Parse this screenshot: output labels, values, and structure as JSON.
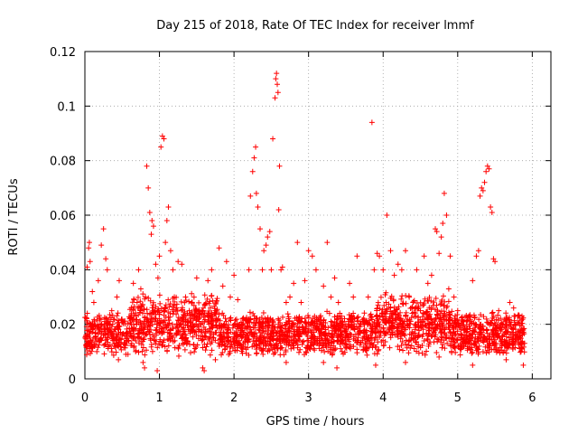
{
  "chart_data": {
    "type": "scatter",
    "title": "Day 215 of 2018, Rate Of TEC Index for receiver lmmf",
    "xlabel": "GPS time / hours",
    "ylabel": "ROTI / TECUs",
    "xlim": [
      0,
      6.25
    ],
    "ylim": [
      0,
      0.12
    ],
    "xticks": [
      0,
      1,
      2,
      3,
      4,
      5,
      6
    ],
    "xtick_labels": [
      "0",
      "1",
      "2",
      "3",
      "4",
      "5",
      "6"
    ],
    "yticks": [
      0,
      0.02,
      0.04,
      0.06,
      0.08,
      0.1,
      0.12
    ],
    "ytick_labels": [
      "0",
      "0.02",
      "0.04",
      "0.06",
      "0.08",
      "0.1",
      "0.12"
    ],
    "grid": true,
    "marker": "+",
    "color": "#ff0000",
    "series": [
      {
        "name": "ROTI",
        "points": [
          [
            0.02,
            0.012
          ],
          [
            0.03,
            0.041
          ],
          [
            0.05,
            0.048
          ],
          [
            0.06,
            0.05
          ],
          [
            0.07,
            0.043
          ],
          [
            0.08,
            0.02
          ],
          [
            0.1,
            0.032
          ],
          [
            0.12,
            0.028
          ],
          [
            0.14,
            0.015
          ],
          [
            0.16,
            0.01
          ],
          [
            0.18,
            0.036
          ],
          [
            0.2,
            0.022
          ],
          [
            0.22,
            0.049
          ],
          [
            0.25,
            0.055
          ],
          [
            0.28,
            0.044
          ],
          [
            0.3,
            0.04
          ],
          [
            0.33,
            0.018
          ],
          [
            0.36,
            0.025
          ],
          [
            0.4,
            0.012
          ],
          [
            0.43,
            0.03
          ],
          [
            0.46,
            0.036
          ],
          [
            0.5,
            0.016
          ],
          [
            0.55,
            0.009
          ],
          [
            0.6,
            0.022
          ],
          [
            0.65,
            0.035
          ],
          [
            0.7,
            0.028
          ],
          [
            0.72,
            0.04
          ],
          [
            0.75,
            0.033
          ],
          [
            0.78,
            0.006
          ],
          [
            0.8,
            0.004
          ],
          [
            0.83,
            0.078
          ],
          [
            0.85,
            0.07
          ],
          [
            0.87,
            0.061
          ],
          [
            0.89,
            0.053
          ],
          [
            0.9,
            0.058
          ],
          [
            0.92,
            0.056
          ],
          [
            0.95,
            0.042
          ],
          [
            0.98,
            0.037
          ],
          [
            1.0,
            0.045
          ],
          [
            1.02,
            0.085
          ],
          [
            1.04,
            0.089
          ],
          [
            1.06,
            0.088
          ],
          [
            1.08,
            0.05
          ],
          [
            1.1,
            0.058
          ],
          [
            1.12,
            0.063
          ],
          [
            1.15,
            0.047
          ],
          [
            1.18,
            0.04
          ],
          [
            1.2,
            0.03
          ],
          [
            1.25,
            0.043
          ],
          [
            1.3,
            0.042
          ],
          [
            1.35,
            0.03
          ],
          [
            1.4,
            0.025
          ],
          [
            1.45,
            0.02
          ],
          [
            1.5,
            0.037
          ],
          [
            1.55,
            0.02
          ],
          [
            1.6,
            0.003
          ],
          [
            1.65,
            0.036
          ],
          [
            1.7,
            0.04
          ],
          [
            1.75,
            0.025
          ],
          [
            1.8,
            0.048
          ],
          [
            1.85,
            0.034
          ],
          [
            1.9,
            0.043
          ],
          [
            1.95,
            0.03
          ],
          [
            2.0,
            0.038
          ],
          [
            2.05,
            0.029
          ],
          [
            2.1,
            0.02
          ],
          [
            2.15,
            0.015
          ],
          [
            2.2,
            0.04
          ],
          [
            2.22,
            0.067
          ],
          [
            2.25,
            0.076
          ],
          [
            2.27,
            0.081
          ],
          [
            2.29,
            0.085
          ],
          [
            2.3,
            0.068
          ],
          [
            2.32,
            0.063
          ],
          [
            2.35,
            0.055
          ],
          [
            2.38,
            0.04
          ],
          [
            2.4,
            0.047
          ],
          [
            2.43,
            0.049
          ],
          [
            2.45,
            0.052
          ],
          [
            2.48,
            0.054
          ],
          [
            2.5,
            0.04
          ],
          [
            2.52,
            0.088
          ],
          [
            2.55,
            0.103
          ],
          [
            2.56,
            0.11
          ],
          [
            2.57,
            0.112
          ],
          [
            2.58,
            0.108
          ],
          [
            2.59,
            0.105
          ],
          [
            2.6,
            0.062
          ],
          [
            2.61,
            0.078
          ],
          [
            2.63,
            0.04
          ],
          [
            2.65,
            0.041
          ],
          [
            2.7,
            0.028
          ],
          [
            2.75,
            0.03
          ],
          [
            2.8,
            0.035
          ],
          [
            2.85,
            0.05
          ],
          [
            2.9,
            0.028
          ],
          [
            2.95,
            0.036
          ],
          [
            3.0,
            0.047
          ],
          [
            3.05,
            0.045
          ],
          [
            3.1,
            0.04
          ],
          [
            3.15,
            0.02
          ],
          [
            3.2,
            0.034
          ],
          [
            3.25,
            0.05
          ],
          [
            3.3,
            0.03
          ],
          [
            3.35,
            0.037
          ],
          [
            3.4,
            0.028
          ],
          [
            3.45,
            0.01
          ],
          [
            3.5,
            0.02
          ],
          [
            3.55,
            0.035
          ],
          [
            3.6,
            0.03
          ],
          [
            3.65,
            0.045
          ],
          [
            3.7,
            0.02
          ],
          [
            3.75,
            0.02
          ],
          [
            3.8,
            0.03
          ],
          [
            3.85,
            0.094
          ],
          [
            3.88,
            0.04
          ],
          [
            3.92,
            0.046
          ],
          [
            3.95,
            0.045
          ],
          [
            4.0,
            0.04
          ],
          [
            4.05,
            0.06
          ],
          [
            4.1,
            0.047
          ],
          [
            4.15,
            0.038
          ],
          [
            4.2,
            0.042
          ],
          [
            4.25,
            0.04
          ],
          [
            4.3,
            0.047
          ],
          [
            4.35,
            0.03
          ],
          [
            4.4,
            0.028
          ],
          [
            4.45,
            0.04
          ],
          [
            4.5,
            0.025
          ],
          [
            4.55,
            0.045
          ],
          [
            4.6,
            0.035
          ],
          [
            4.65,
            0.038
          ],
          [
            4.7,
            0.055
          ],
          [
            4.72,
            0.054
          ],
          [
            4.75,
            0.046
          ],
          [
            4.78,
            0.052
          ],
          [
            4.8,
            0.057
          ],
          [
            4.82,
            0.068
          ],
          [
            4.85,
            0.06
          ],
          [
            4.88,
            0.033
          ],
          [
            4.9,
            0.045
          ],
          [
            4.95,
            0.03
          ],
          [
            5.0,
            0.025
          ],
          [
            5.05,
            0.02
          ],
          [
            5.1,
            0.018
          ],
          [
            5.15,
            0.023
          ],
          [
            5.2,
            0.036
          ],
          [
            5.25,
            0.045
          ],
          [
            5.28,
            0.047
          ],
          [
            5.3,
            0.067
          ],
          [
            5.32,
            0.07
          ],
          [
            5.34,
            0.069
          ],
          [
            5.36,
            0.072
          ],
          [
            5.38,
            0.076
          ],
          [
            5.4,
            0.078
          ],
          [
            5.42,
            0.077
          ],
          [
            5.44,
            0.063
          ],
          [
            5.46,
            0.061
          ],
          [
            5.48,
            0.044
          ],
          [
            5.5,
            0.043
          ],
          [
            5.55,
            0.025
          ],
          [
            5.6,
            0.02
          ],
          [
            5.65,
            0.02
          ],
          [
            5.7,
            0.028
          ],
          [
            5.75,
            0.026
          ],
          [
            5.8,
            0.015
          ],
          [
            5.85,
            0.01
          ],
          [
            5.88,
            0.005
          ],
          [
            0.97,
            0.003
          ],
          [
            1.58,
            0.004
          ],
          [
            3.38,
            0.004
          ],
          [
            3.9,
            0.005
          ],
          [
            4.3,
            0.006
          ],
          [
            5.2,
            0.005
          ],
          [
            0.45,
            0.007
          ],
          [
            2.7,
            0.006
          ],
          [
            5.65,
            0.007
          ],
          [
            1.75,
            0.007
          ],
          [
            3.2,
            0.006
          ],
          [
            4.75,
            0.008
          ]
        ]
      }
    ]
  }
}
